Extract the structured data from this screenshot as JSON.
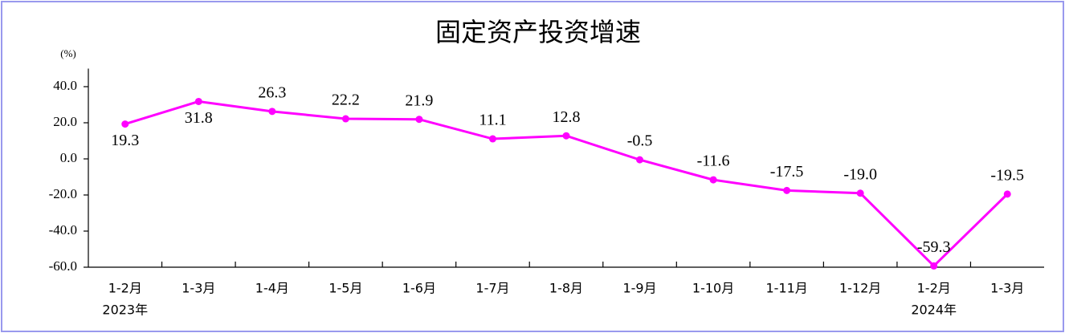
{
  "chart_data": {
    "type": "line",
    "title": "固定资产投资增速",
    "y_unit": "(%)",
    "categories": [
      "1-2月",
      "1-3月",
      "1-4月",
      "1-5月",
      "1-6月",
      "1-7月",
      "1-8月",
      "1-9月",
      "1-10月",
      "1-11月",
      "1-12月",
      "1-2月",
      "1-3月"
    ],
    "category_sublabels": [
      "2023年",
      null,
      null,
      null,
      null,
      null,
      null,
      null,
      null,
      null,
      null,
      "2024年",
      null
    ],
    "series": [
      {
        "name": "固定资产投资增速",
        "color": "#ff00ff",
        "values": [
          19.3,
          31.8,
          26.3,
          22.2,
          21.9,
          11.1,
          12.8,
          -0.5,
          -11.6,
          -17.5,
          -19.0,
          -59.3,
          -19.5
        ],
        "value_labels": [
          "19.3",
          "31.8",
          "26.3",
          "22.2",
          "21.9",
          "11.1",
          "12.8",
          "-0.5",
          "-11.6",
          "-17.5",
          "-19.0",
          "-59.3",
          "-19.5"
        ]
      }
    ],
    "ylim": [
      -60,
      50
    ],
    "yticks": [
      {
        "value": -60,
        "label": "-60.0"
      },
      {
        "value": -40,
        "label": "-40.0"
      },
      {
        "value": -20,
        "label": "-20.0"
      },
      {
        "value": 0,
        "label": "0.0"
      },
      {
        "value": 20,
        "label": "20.0"
      },
      {
        "value": 40,
        "label": "40.0"
      }
    ],
    "grid": false
  }
}
